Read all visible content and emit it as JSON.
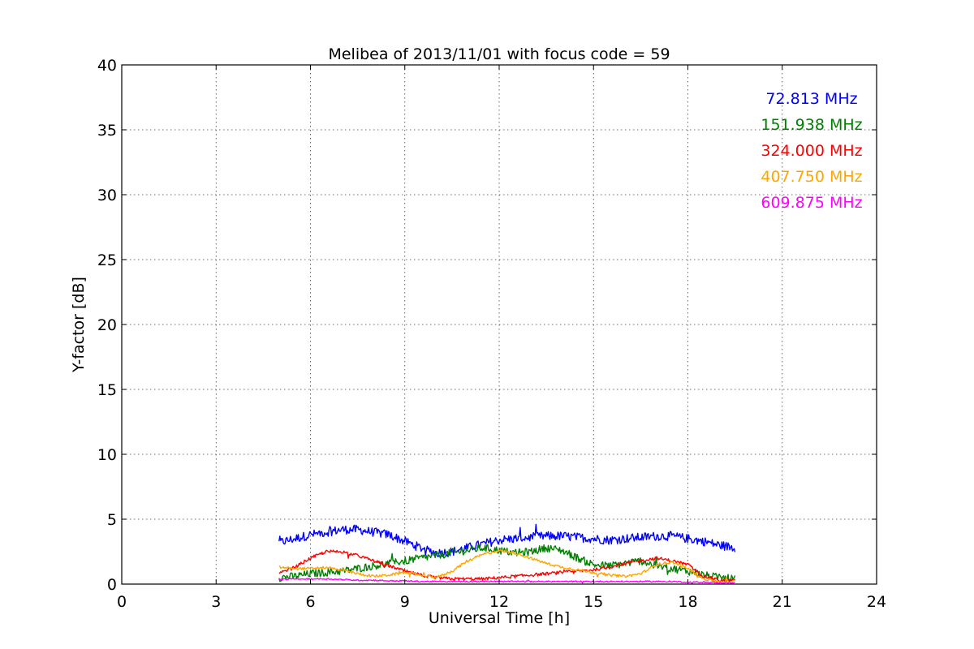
{
  "chart_data": {
    "type": "line",
    "title": "Melibea of 2013/11/01 with focus code = 59",
    "xlabel": "Universal Time [h]",
    "ylabel": "Y-factor [dB]",
    "xlim": [
      0,
      24
    ],
    "ylim": [
      0,
      40
    ],
    "x_ticks": [
      "0",
      "3",
      "6",
      "9",
      "12",
      "15",
      "18",
      "21",
      "24"
    ],
    "y_ticks": [
      "0",
      "5",
      "10",
      "15",
      "20",
      "25",
      "30",
      "35",
      "40"
    ],
    "grid": true,
    "legend_position": "top-right",
    "series": [
      {
        "name": "72.813 MHz",
        "color": "#0000ff",
        "noise": 0.35,
        "x": [
          5.0,
          5.5,
          6.0,
          6.5,
          7.0,
          7.5,
          8.0,
          8.5,
          9.0,
          9.5,
          10.0,
          10.5,
          11.0,
          11.5,
          12.0,
          12.5,
          13.0,
          13.5,
          14.0,
          14.5,
          15.0,
          15.5,
          16.0,
          16.5,
          17.0,
          17.5,
          18.0,
          18.5,
          19.0,
          19.5
        ],
        "y": [
          3.2,
          3.5,
          3.8,
          4.0,
          4.2,
          4.2,
          4.0,
          3.8,
          3.3,
          2.8,
          2.4,
          2.5,
          2.8,
          3.1,
          3.4,
          3.5,
          3.6,
          3.7,
          3.7,
          3.6,
          3.5,
          3.4,
          3.5,
          3.6,
          3.7,
          3.7,
          3.5,
          3.3,
          3.0,
          2.8
        ]
      },
      {
        "name": "151.938 MHz",
        "color": "#008000",
        "noise": 0.3,
        "x": [
          5.0,
          5.5,
          6.0,
          6.5,
          7.0,
          7.5,
          8.0,
          8.5,
          9.0,
          9.5,
          10.0,
          10.5,
          11.0,
          11.5,
          12.0,
          12.5,
          13.0,
          13.5,
          14.0,
          14.5,
          15.0,
          15.5,
          16.0,
          16.5,
          17.0,
          17.5,
          18.0,
          18.5,
          19.0,
          19.5
        ],
        "y": [
          0.5,
          0.6,
          0.8,
          0.9,
          1.0,
          1.2,
          1.4,
          1.6,
          1.8,
          2.0,
          2.2,
          2.4,
          2.6,
          2.8,
          2.6,
          2.4,
          2.5,
          2.8,
          2.6,
          2.0,
          1.5,
          1.4,
          1.6,
          1.8,
          1.4,
          1.2,
          1.0,
          0.7,
          0.5,
          0.4
        ]
      },
      {
        "name": "324.000 MHz",
        "color": "#ff0000",
        "noise": 0.12,
        "x": [
          5.0,
          5.5,
          6.0,
          6.5,
          7.0,
          7.5,
          8.0,
          8.5,
          9.0,
          9.5,
          10.0,
          10.5,
          11.0,
          11.5,
          12.0,
          12.5,
          13.0,
          13.5,
          14.0,
          14.5,
          15.0,
          15.5,
          16.0,
          16.5,
          17.0,
          17.5,
          18.0,
          18.5,
          19.0,
          19.5
        ],
        "y": [
          0.8,
          1.3,
          2.0,
          2.5,
          2.5,
          2.2,
          1.8,
          1.4,
          1.0,
          0.7,
          0.5,
          0.4,
          0.4,
          0.4,
          0.5,
          0.6,
          0.7,
          0.8,
          0.9,
          1.0,
          1.1,
          1.3,
          1.6,
          1.8,
          2.0,
          1.8,
          1.5,
          0.6,
          0.3,
          0.3
        ]
      },
      {
        "name": "407.750 MHz",
        "color": "#ffa500",
        "noise": 0.1,
        "x": [
          5.0,
          5.5,
          6.0,
          6.5,
          7.0,
          7.5,
          8.0,
          8.5,
          9.0,
          9.5,
          10.0,
          10.5,
          11.0,
          11.5,
          12.0,
          12.5,
          13.0,
          13.5,
          14.0,
          14.5,
          15.0,
          15.5,
          16.0,
          16.5,
          17.0,
          17.5,
          18.0,
          18.5,
          19.0,
          19.5
        ],
        "y": [
          1.3,
          1.2,
          1.2,
          1.3,
          1.1,
          0.8,
          0.6,
          0.7,
          0.9,
          0.7,
          0.5,
          1.0,
          1.8,
          2.3,
          2.6,
          2.4,
          2.0,
          1.6,
          1.3,
          1.1,
          0.9,
          0.7,
          0.6,
          0.8,
          1.5,
          1.7,
          1.2,
          0.4,
          0.2,
          0.2
        ]
      },
      {
        "name": "609.875 MHz",
        "color": "#ff00ff",
        "noise": 0.05,
        "x": [
          5.0,
          5.5,
          6.0,
          6.5,
          7.0,
          7.5,
          8.0,
          8.5,
          9.0,
          9.5,
          10.0,
          10.5,
          11.0,
          11.5,
          12.0,
          12.5,
          13.0,
          13.5,
          14.0,
          14.5,
          15.0,
          15.5,
          16.0,
          16.5,
          17.0,
          17.5,
          18.0,
          18.5,
          19.0,
          19.5
        ],
        "y": [
          0.35,
          0.4,
          0.4,
          0.4,
          0.35,
          0.3,
          0.3,
          0.25,
          0.25,
          0.2,
          0.2,
          0.2,
          0.2,
          0.2,
          0.2,
          0.2,
          0.2,
          0.2,
          0.2,
          0.2,
          0.2,
          0.2,
          0.2,
          0.2,
          0.2,
          0.2,
          0.15,
          0.15,
          0.1,
          0.1
        ]
      }
    ]
  }
}
